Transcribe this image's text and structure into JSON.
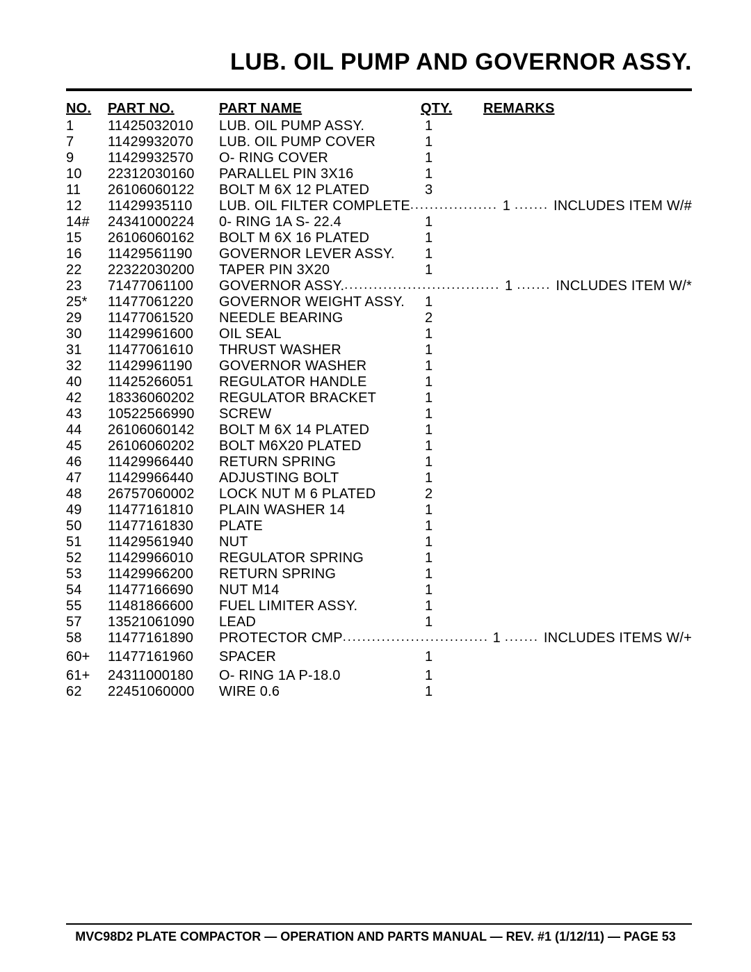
{
  "title": "LUB. OIL PUMP AND GOVERNOR ASSY.",
  "columns": {
    "no": "NO.",
    "partno": "PART NO.",
    "partname": "PART NAME",
    "qty": "QTY.",
    "remarks": "REMARKS"
  },
  "rows": [
    {
      "no": "1",
      "partno": "11425032010",
      "name": "LUB. OIL PUMP ASSY.",
      "qty": "1",
      "remarks": "",
      "leader": false
    },
    {
      "no": "7",
      "partno": "11429932070",
      "name": "LUB. OIL PUMP COVER",
      "qty": "1",
      "remarks": "",
      "leader": false
    },
    {
      "no": "9",
      "partno": "11429932570",
      "name": "O- RING COVER",
      "qty": "1",
      "remarks": "",
      "leader": false
    },
    {
      "no": "10",
      "partno": "22312030160",
      "name": "PARALLEL PIN 3X16",
      "qty": "1",
      "remarks": "",
      "leader": false
    },
    {
      "no": "11",
      "partno": "26106060122",
      "name": "BOLT M 6X 12 PLATED",
      "qty": "3",
      "remarks": "",
      "leader": false
    },
    {
      "no": "12",
      "partno": "11429935110",
      "name": "LUB. OIL FILTER COMPLETE",
      "qty": "1",
      "remarks": "INCLUDES ITEM W/#",
      "leader": true,
      "d1": 5,
      "d2": 4
    },
    {
      "no": "14#",
      "partno": "24341000224",
      "name": "0- RING 1A S- 22.4",
      "qty": "1",
      "remarks": "",
      "leader": false
    },
    {
      "no": "15",
      "partno": "26106060162",
      "name": "BOLT M 6X 16 PLATED",
      "qty": "1",
      "remarks": "",
      "leader": false
    },
    {
      "no": "16",
      "partno": "11429561190",
      "name": "GOVERNOR LEVER ASSY.",
      "qty": "1",
      "remarks": "",
      "leader": false
    },
    {
      "no": "22",
      "partno": "22322030200",
      "name": "TAPER PIN 3X20",
      "qty": "1",
      "remarks": "",
      "leader": false
    },
    {
      "no": "23",
      "partno": "71477061100",
      "name": "GOVERNOR ASSY.",
      "qty": "1",
      "remarks": "INCLUDES ITEM W/*",
      "leader": true,
      "d1": 10,
      "d2": 4
    },
    {
      "no": "25*",
      "partno": "11477061220",
      "name": "GOVERNOR WEIGHT ASSY.",
      "qty": "1",
      "remarks": "",
      "leader": false
    },
    {
      "no": "29",
      "partno": "11477061520",
      "name": "NEEDLE BEARING",
      "qty": "2",
      "remarks": "",
      "leader": false
    },
    {
      "no": "30",
      "partno": "11429961600",
      "name": "OIL SEAL",
      "qty": "1",
      "remarks": "",
      "leader": false
    },
    {
      "no": "31",
      "partno": "11477061610",
      "name": "THRUST WASHER",
      "qty": "1",
      "remarks": "",
      "leader": false
    },
    {
      "no": "32",
      "partno": "11429961190",
      "name": "GOVERNOR WASHER",
      "qty": "1",
      "remarks": "",
      "leader": false
    },
    {
      "no": "40",
      "partno": "11425266051",
      "name": "REGULATOR HANDLE",
      "qty": "1",
      "remarks": "",
      "leader": false
    },
    {
      "no": "42",
      "partno": "18336060202",
      "name": "REGULATOR BRACKET",
      "qty": "1",
      "remarks": "",
      "leader": false
    },
    {
      "no": "43",
      "partno": "10522566990",
      "name": "SCREW",
      "qty": "1",
      "remarks": "",
      "leader": false
    },
    {
      "no": "44",
      "partno": "26106060142",
      "name": "BOLT M 6X 14 PLATED",
      "qty": "1",
      "remarks": "",
      "leader": false
    },
    {
      "no": "45",
      "partno": "26106060202",
      "name": "BOLT M6X20 PLATED",
      "qty": "1",
      "remarks": "",
      "leader": false
    },
    {
      "no": "46",
      "partno": "11429966440",
      "name": "RETURN SPRING",
      "qty": "1",
      "remarks": "",
      "leader": false
    },
    {
      "no": "47",
      "partno": "11429966440",
      "name": "ADJUSTING BOLT",
      "qty": "1",
      "remarks": "",
      "leader": false
    },
    {
      "no": "48",
      "partno": "26757060002",
      "name": "LOCK NUT M 6 PLATED",
      "qty": "2",
      "remarks": "",
      "leader": false
    },
    {
      "no": "49",
      "partno": "11477161810",
      "name": "PLAIN WASHER 14",
      "qty": "1",
      "remarks": "",
      "leader": false
    },
    {
      "no": "50",
      "partno": "11477161830",
      "name": "PLATE",
      "qty": "1",
      "remarks": "",
      "leader": false
    },
    {
      "no": "51",
      "partno": "11429561940",
      "name": "NUT",
      "qty": "1",
      "remarks": "",
      "leader": false
    },
    {
      "no": "52",
      "partno": "11429966010",
      "name": "REGULATOR SPRING",
      "qty": "1",
      "remarks": "",
      "leader": false
    },
    {
      "no": "53",
      "partno": "11429966200",
      "name": "RETURN SPRING",
      "qty": "1",
      "remarks": "",
      "leader": false
    },
    {
      "no": "54",
      "partno": "11477166690",
      "name": "NUT M14",
      "qty": "1",
      "remarks": "",
      "leader": false
    },
    {
      "no": "55",
      "partno": "11481866600",
      "name": "FUEL LIMITER ASSY.",
      "qty": "1",
      "remarks": "",
      "leader": false
    },
    {
      "no": "57",
      "partno": "13521061090",
      "name": "LEAD",
      "qty": "1",
      "remarks": "",
      "leader": false
    },
    {
      "no": "58",
      "partno": "11477161890",
      "name": "PROTECTOR CMP",
      "qty": "1",
      "remarks": "INCLUDES ITEMS W/+",
      "leader": true,
      "d1": 10,
      "d2": 4
    },
    {
      "no": "60+",
      "partno": "11477161960",
      "name": "SPACER",
      "qty": "1",
      "remarks": "",
      "leader": false,
      "spaced": true
    },
    {
      "no": "61+",
      "partno": "24311000180",
      "name": "O- RING 1A P-18.0",
      "qty": "1",
      "remarks": "",
      "leader": false,
      "spaced": true
    },
    {
      "no": "62",
      "partno": "22451060000",
      "name": "WIRE 0.6",
      "qty": "1",
      "remarks": "",
      "leader": false
    }
  ],
  "footer": "MVC98D2 PLATE COMPACTOR — OPERATION AND PARTS MANUAL — REV. #1 (1/12/11) — PAGE 53"
}
